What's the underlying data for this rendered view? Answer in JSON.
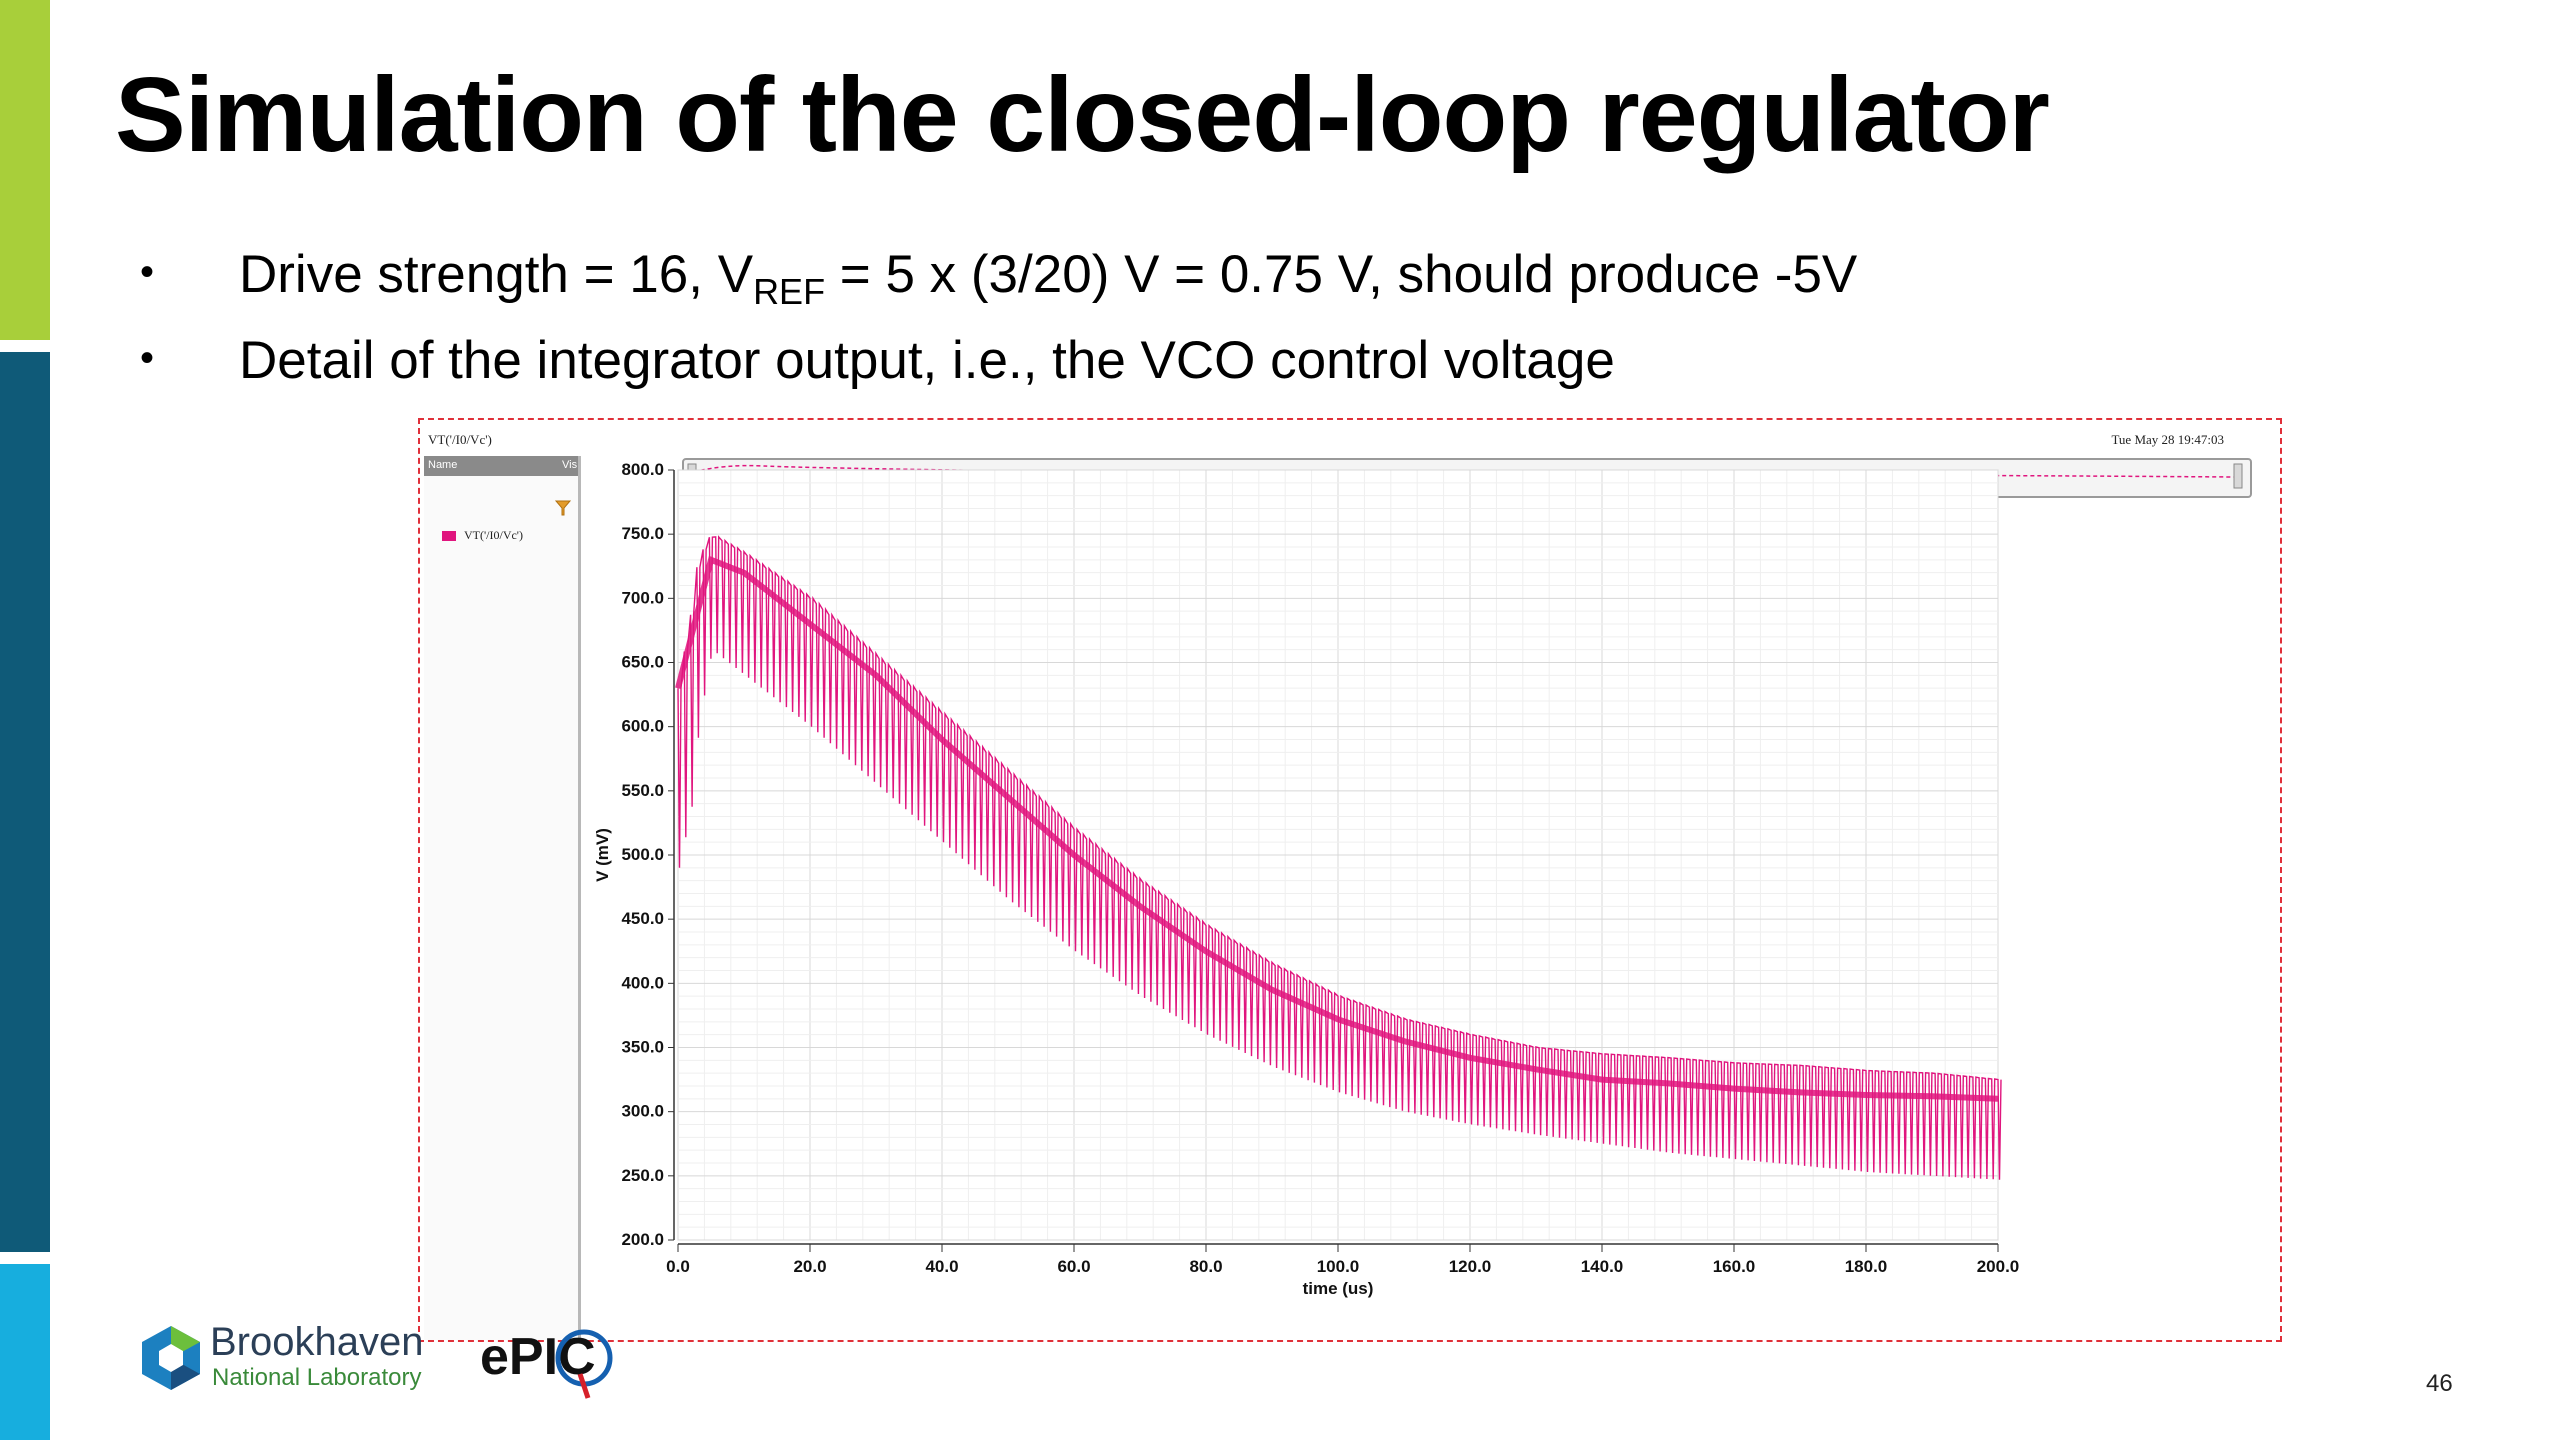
{
  "slide": {
    "title": "Simulation of the closed-loop regulator",
    "bullets": [
      {
        "pre": "Drive strength = 16, V",
        "sub": "REF",
        "post": " = 5 x (3/20) V = 0.75 V, should produce -5V"
      },
      {
        "pre": "Detail of the integrator output, i.e., the VCO control voltage",
        "sub": "",
        "post": ""
      }
    ],
    "bullet_glyph": "•",
    "page_number": "46"
  },
  "sidebar_colors": [
    "#a8cf3a",
    "#0f5a78",
    "#17aede"
  ],
  "viewer": {
    "window_title": "VT('/I0/Vc')",
    "timestamp": "Tue May 28 19:47:03",
    "columns": {
      "name": "Name",
      "vis": "Vis"
    },
    "filter_icon": "filter-icon",
    "signal_name": "VT('/I0/Vc')",
    "signal_color": "#e0157e"
  },
  "chart_data": {
    "type": "line",
    "ylabel": "V (mV)",
    "xlabel": "time (us)",
    "xlim": [
      0,
      200
    ],
    "ylim": [
      200,
      800
    ],
    "x_ticks": [
      "0.0",
      "20.0",
      "40.0",
      "60.0",
      "80.0",
      "100.0",
      "120.0",
      "140.0",
      "160.0",
      "180.0",
      "200.0"
    ],
    "y_ticks": [
      "800.0",
      "750.0",
      "700.0",
      "650.0",
      "600.0",
      "550.0",
      "500.0",
      "450.0",
      "400.0",
      "350.0",
      "300.0",
      "250.0",
      "200.0"
    ],
    "grid": true,
    "series": [
      {
        "name": "VT('/I0/Vc')",
        "color": "#e0157e",
        "upper_envelope": {
          "x": [
            0,
            2,
            3,
            5,
            10,
            20,
            30,
            40,
            50,
            60,
            70,
            80,
            90,
            100,
            110,
            120,
            130,
            140,
            150,
            160,
            170,
            180,
            190,
            200
          ],
          "y": [
            630,
            690,
            730,
            750,
            735,
            700,
            655,
            610,
            565,
            520,
            480,
            445,
            415,
            390,
            372,
            360,
            350,
            345,
            342,
            338,
            336,
            332,
            330,
            325
          ]
        },
        "lower_envelope": {
          "x": [
            0,
            2,
            3,
            5,
            10,
            20,
            30,
            40,
            50,
            60,
            70,
            80,
            90,
            100,
            110,
            120,
            130,
            140,
            150,
            160,
            170,
            180,
            190,
            200
          ],
          "y": [
            490,
            540,
            600,
            660,
            640,
            600,
            555,
            510,
            465,
            425,
            390,
            360,
            335,
            315,
            300,
            290,
            282,
            275,
            268,
            263,
            258,
            253,
            250,
            247
          ]
        },
        "mid": {
          "x": [
            0,
            5,
            10,
            20,
            30,
            40,
            50,
            60,
            70,
            80,
            90,
            100,
            110,
            120,
            130,
            140,
            150,
            160,
            170,
            180,
            190,
            200
          ],
          "y": [
            630,
            730,
            720,
            680,
            640,
            590,
            545,
            500,
            460,
            425,
            395,
            372,
            355,
            342,
            333,
            325,
            322,
            318,
            315,
            313,
            312,
            310
          ]
        }
      }
    ]
  },
  "logos": {
    "bnl_name": "Brookhaven",
    "bnl_sub": "National Laboratory",
    "epic": "ePIC"
  }
}
